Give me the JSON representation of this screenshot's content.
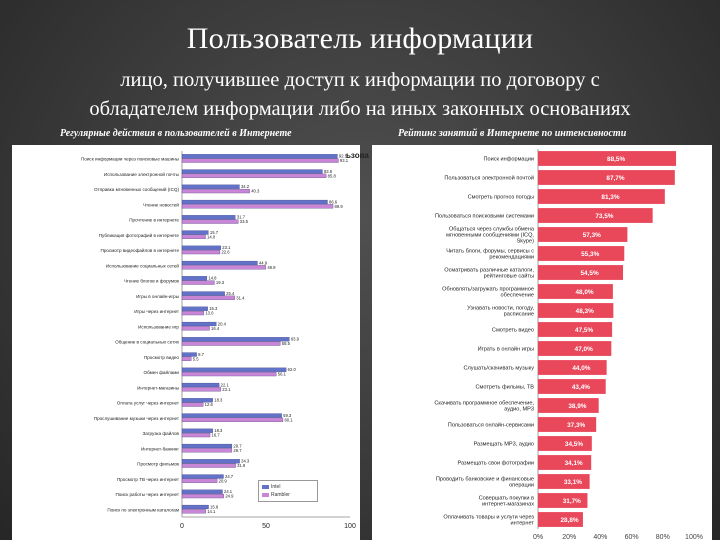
{
  "slide": {
    "title": "Пользователь информации",
    "subtitle_line1": "лицо, получившее доступ к информации по договору с",
    "subtitle_line2": "обладателем информации либо на иных законных основаниях"
  },
  "left_panel": {
    "title": "Регулярные действия в пользователей в Интернете",
    "partial_word": "ьзова"
  },
  "right_panel": {
    "title": "Рейтинг занятий в Интернете по интенсивности"
  },
  "colors": {
    "series_a": "#6272c8",
    "series_b": "#c986d6",
    "right_bar": "#e9475a"
  },
  "chart_data": [
    {
      "type": "bar",
      "orientation": "horizontal",
      "title": "Регулярные действия в пользователей в Интернете",
      "categories": [
        "Поиск информации через поисковые машины",
        "Использование электронной почты",
        "Отправка мгновенных сообщений (ICQ)",
        "Чтение новостей",
        "Прочтение в интернете",
        "Публикация фотографий в интернете",
        "Просмотр видеофайлов в интернете",
        "Использование социальных сетей",
        "Чтение блогов и форумов",
        "Игры в онлайн-игры",
        "Игры через интернет",
        "Использование игр",
        "Общение в социальных сетях",
        "Просмотр видео",
        "Обмен файлами",
        "Интернет-магазины",
        "Оплата услуг через интернет",
        "Прослушивание музыки через интернет",
        "Загрузка файлов",
        "Интернет-банкинг",
        "Просмотр фильмов",
        "Просмотр ТВ через интернет",
        "Поиск работы через интернет",
        "Поиск по электронным каталогам"
      ],
      "series": [
        {
          "values": [
            92.5,
            83.6,
            34.2,
            86.6,
            31.7,
            15.7,
            23.1,
            44.9,
            14.8,
            25.4,
            15.3,
            20.4,
            63.9,
            8.7,
            62.0,
            22.1,
            18.3,
            59.3,
            18.3,
            29.7,
            34.3,
            24.7,
            24.1,
            15.8
          ]
        },
        {
          "values": [
            93.1,
            85.8,
            40.3,
            89.9,
            33.5,
            14.0,
            22.6,
            49.9,
            19.3,
            31.4,
            13.0,
            16.4,
            58.5,
            5.5,
            56.1,
            23.1,
            12.6,
            60.1,
            16.7,
            29.7,
            31.9,
            20.9,
            24.9,
            14.1
          ]
        }
      ],
      "xlim": [
        0,
        100
      ],
      "x_ticks": [
        "0",
        "50",
        "100"
      ],
      "legend": [
        "Intel",
        "Rambler"
      ],
      "legend_placement": "bottom-right"
    },
    {
      "type": "bar",
      "orientation": "horizontal",
      "title": "Рейтинг занятий в Интернете по интенсивности",
      "categories": [
        "Поиск информации",
        "Пользоваться электронной почтой",
        "Смотреть прогноз погоды",
        "Пользоваться поисковыми системами",
        "Общаться через службы обмена мгновенными сообщениями (ICQ, Skype)",
        "Читать блоги, форумы, сервисы с рекомендациями",
        "Осматривать различные каталоги, рейтинговые сайты",
        "Обновлять/загружать программное обеспечение",
        "Узнавать новости, погоду, расписание",
        "Смотреть видео",
        "Играть в онлайн игры",
        "Слушать/скачивать музыку",
        "Смотреть фильмы, ТВ",
        "Скачивать программное обеспечение, аудио, MP3",
        "Пользоваться онлайн-сервисами",
        "Размещать MP3, аудио",
        "Размещать свои фотографии",
        "Проводить банковские и финансовые операции",
        "Совершать покупки в интернет-магазинах",
        "Оплачивать товары и услуги через интернет"
      ],
      "values": [
        88.5,
        87.7,
        81.3,
        73.5,
        57.3,
        55.3,
        54.5,
        48.0,
        48.3,
        47.5,
        47.0,
        44.0,
        43.4,
        38.9,
        37.3,
        34.5,
        34.1,
        33.1,
        31.7,
        28.8
      ],
      "value_labels": [
        "88,5%",
        "87,7%",
        "81,3%",
        "73,5%",
        "57,3%",
        "55,3%",
        "54,5%",
        "48,0%",
        "48,3%",
        "47,5%",
        "47,0%",
        "44,0%",
        "43,4%",
        "38,9%",
        "37,3%",
        "34,5%",
        "34,1%",
        "33,1%",
        "31,7%",
        "28,8%"
      ],
      "xlim": [
        0,
        100
      ],
      "x_ticks": [
        "0%",
        "20%",
        "40%",
        "60%",
        "80%",
        "100%"
      ]
    }
  ]
}
